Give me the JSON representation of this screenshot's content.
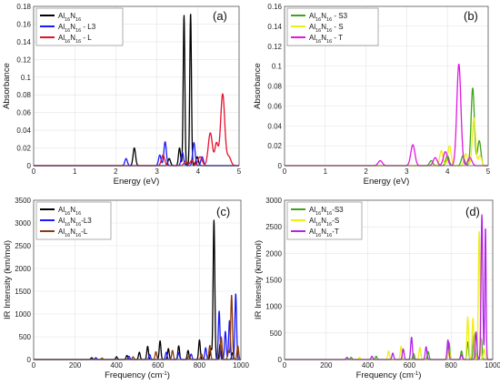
{
  "chart_data": [
    {
      "type": "line",
      "panel": "(a)",
      "xlabel": "Energy (eV)",
      "ylabel": "Absorbance",
      "xlim": [
        0,
        5
      ],
      "ylim": [
        0,
        0.18
      ],
      "xticks": [
        0,
        1,
        2,
        3,
        4,
        5
      ],
      "yticks": [
        0,
        0.02,
        0.04,
        0.06,
        0.08,
        0.1,
        0.12,
        0.14,
        0.16,
        0.18
      ],
      "ytick_labels": [
        "0",
        "0.02",
        "0.04",
        "0.06",
        "0.08",
        "0.1",
        "0.12",
        "0.14",
        "0.16",
        "0.18"
      ],
      "grid": true,
      "legend_position": "top-left",
      "series": [
        {
          "name": [
            "Al",
            "16",
            "N",
            "16",
            ""
          ],
          "color": "#000000",
          "peaks": [
            [
              2.45,
              0.02,
              0.03
            ],
            [
              3.3,
              0.008,
              0.03
            ],
            [
              3.55,
              0.02,
              0.025
            ],
            [
              3.66,
              0.17,
              0.02
            ],
            [
              3.82,
              0.172,
              0.02
            ],
            [
              3.98,
              0.01,
              0.03
            ]
          ]
        },
        {
          "name": [
            "Al",
            "16",
            "N",
            "16",
            " - L3"
          ],
          "color": "#1a1aff",
          "peaks": [
            [
              2.25,
              0.008,
              0.03
            ],
            [
              3.07,
              0.012,
              0.03
            ],
            [
              3.2,
              0.027,
              0.03
            ],
            [
              3.62,
              0.015,
              0.03
            ],
            [
              3.9,
              0.026,
              0.03
            ],
            [
              4.1,
              0.01,
              0.03
            ]
          ]
        },
        {
          "name": [
            "Al",
            "16",
            "N",
            "16",
            " - L"
          ],
          "color": "#e8102a",
          "peaks": [
            [
              3.15,
              0.012,
              0.04
            ],
            [
              3.7,
              0.005,
              0.04
            ],
            [
              3.85,
              0.006,
              0.04
            ],
            [
              4.05,
              0.01,
              0.05
            ],
            [
              4.3,
              0.037,
              0.05
            ],
            [
              4.45,
              0.025,
              0.04
            ],
            [
              4.6,
              0.081,
              0.05
            ],
            [
              4.75,
              0.01,
              0.05
            ]
          ]
        }
      ]
    },
    {
      "type": "line",
      "panel": "(b)",
      "xlabel": "Energy (eV)",
      "ylabel": "Absorbance",
      "xlim": [
        0,
        5
      ],
      "ylim": [
        0,
        0.16
      ],
      "xticks": [
        0,
        1,
        2,
        3,
        4,
        5
      ],
      "yticks": [
        0,
        0.02,
        0.04,
        0.06,
        0.08,
        0.1,
        0.12,
        0.14,
        0.16
      ],
      "ytick_labels": [
        "0",
        "0.02",
        "0.04",
        "0.06",
        "0.08",
        "0.1",
        "0.12",
        "0.14",
        "0.16"
      ],
      "grid": true,
      "legend_position": "top-left",
      "series": [
        {
          "name": [
            "Al",
            "16",
            "N",
            "16",
            " - S3"
          ],
          "color": "#3fa31c",
          "peaks": [
            [
              3.6,
              0.005,
              0.04
            ],
            [
              4.0,
              0.01,
              0.04
            ],
            [
              4.38,
              0.01,
              0.04
            ],
            [
              4.62,
              0.078,
              0.04
            ],
            [
              4.78,
              0.025,
              0.04
            ]
          ]
        },
        {
          "name": [
            "Al",
            "16",
            "N",
            "16",
            " - S"
          ],
          "color": "#eeee10",
          "peaks": [
            [
              3.85,
              0.015,
              0.04
            ],
            [
              4.05,
              0.02,
              0.04
            ],
            [
              4.45,
              0.012,
              0.04
            ],
            [
              4.65,
              0.048,
              0.04
            ],
            [
              4.8,
              0.01,
              0.04
            ]
          ]
        },
        {
          "name": [
            "Al",
            "16",
            "N",
            "16",
            " - T"
          ],
          "color": "#e019e0",
          "peaks": [
            [
              2.35,
              0.005,
              0.05
            ],
            [
              3.15,
              0.021,
              0.05
            ],
            [
              3.7,
              0.008,
              0.05
            ],
            [
              3.95,
              0.014,
              0.05
            ],
            [
              4.28,
              0.102,
              0.05
            ],
            [
              4.55,
              0.008,
              0.05
            ]
          ]
        }
      ]
    },
    {
      "type": "line",
      "panel": "(c)",
      "xlabel": [
        "Frequency (cm",
        "-1",
        ")"
      ],
      "ylabel": "IR Intensity (km/mol)",
      "xlim": [
        0,
        1000
      ],
      "ylim": [
        0,
        3500
      ],
      "xticks": [
        0,
        200,
        400,
        600,
        800,
        1000
      ],
      "yticks": [
        0,
        500,
        1000,
        1500,
        2000,
        2500,
        3000,
        3500
      ],
      "ytick_labels": [
        "0",
        "500",
        "1000",
        "1500",
        "2000",
        "2500",
        "3000",
        "3500"
      ],
      "grid": true,
      "legend_position": "top-left",
      "series": [
        {
          "name": [
            "Al",
            "16",
            "N",
            "16",
            ""
          ],
          "color": "#000000",
          "peaks": [
            [
              280,
              40,
              4
            ],
            [
              400,
              60,
              4
            ],
            [
              450,
              90,
              4
            ],
            [
              510,
              160,
              4
            ],
            [
              550,
              290,
              4
            ],
            [
              610,
              410,
              4
            ],
            [
              650,
              240,
              4
            ],
            [
              700,
              300,
              4
            ],
            [
              745,
              200,
              4
            ],
            [
              800,
              430,
              4
            ],
            [
              855,
              240,
              4
            ],
            [
              870,
              3060,
              4
            ],
            [
              900,
              340,
              4
            ],
            [
              960,
              150,
              4
            ]
          ]
        },
        {
          "name": [
            "Al",
            "16",
            "N",
            "16",
            "-L3"
          ],
          "color": "#1a1aff",
          "peaks": [
            [
              300,
              40,
              4
            ],
            [
              460,
              70,
              4
            ],
            [
              560,
              110,
              4
            ],
            [
              640,
              160,
              4
            ],
            [
              700,
              150,
              4
            ],
            [
              760,
              120,
              4
            ],
            [
              830,
              260,
              4
            ],
            [
              895,
              1070,
              4
            ],
            [
              925,
              620,
              4
            ],
            [
              945,
              860,
              4
            ],
            [
              975,
              1450,
              4
            ]
          ]
        },
        {
          "name": [
            "Al",
            "16",
            "N",
            "16",
            "-L"
          ],
          "color": "#8b3a0a",
          "peaks": [
            [
              330,
              30,
              4
            ],
            [
              480,
              60,
              4
            ],
            [
              590,
              170,
              4
            ],
            [
              670,
              200,
              4
            ],
            [
              750,
              90,
              4
            ],
            [
              810,
              120,
              4
            ],
            [
              850,
              310,
              4
            ],
            [
              905,
              500,
              4
            ],
            [
              940,
              200,
              4
            ],
            [
              955,
              1420,
              4
            ],
            [
              985,
              300,
              4
            ]
          ]
        }
      ]
    },
    {
      "type": "line",
      "panel": "(d)",
      "xlabel": [
        "Frequency (cm",
        "-1",
        ")"
      ],
      "ylabel": "IR Intensity (km/mol)",
      "xlim": [
        0,
        1000
      ],
      "ylim": [
        0,
        3000
      ],
      "xticks": [
        0,
        200,
        400,
        600,
        800,
        1000
      ],
      "yticks": [
        0,
        500,
        1000,
        1500,
        2000,
        2500,
        3000
      ],
      "ytick_labels": [
        "0",
        "500",
        "1000",
        "1500",
        "2000",
        "2500",
        "3000"
      ],
      "grid": true,
      "legend_position": "top-left",
      "series": [
        {
          "name": [
            "Al",
            "16",
            "N",
            "16",
            "-S3"
          ],
          "color": "#3fa31c",
          "peaks": [
            [
              320,
              40,
              4
            ],
            [
              440,
              60,
              4
            ],
            [
              620,
              110,
              4
            ],
            [
              690,
              150,
              4
            ],
            [
              790,
              320,
              4
            ],
            [
              850,
              160,
              4
            ],
            [
              880,
              330,
              4
            ],
            [
              910,
              500,
              4
            ],
            [
              945,
              400,
              4
            ]
          ]
        },
        {
          "name": [
            "Al",
            "16",
            "N",
            "16",
            "-S"
          ],
          "color": "#eeee10",
          "peaks": [
            [
              360,
              40,
              4
            ],
            [
              500,
              160,
              4
            ],
            [
              560,
              250,
              4
            ],
            [
              650,
              230,
              4
            ],
            [
              790,
              200,
              4
            ],
            [
              880,
              800,
              4
            ],
            [
              905,
              780,
              4
            ],
            [
              935,
              2430,
              4
            ],
            [
              960,
              200,
              4
            ]
          ]
        },
        {
          "name": [
            "Al",
            "16",
            "N",
            "16",
            "-T"
          ],
          "color": "#b521e8",
          "peaks": [
            [
              300,
              40,
              4
            ],
            [
              420,
              60,
              4
            ],
            [
              520,
              120,
              4
            ],
            [
              570,
              200,
              4
            ],
            [
              610,
              420,
              4
            ],
            [
              680,
              240,
              4
            ],
            [
              785,
              370,
              4
            ],
            [
              850,
              90,
              4
            ],
            [
              920,
              520,
              4
            ],
            [
              948,
              2730,
              4
            ],
            [
              965,
              2500,
              3
            ]
          ]
        }
      ]
    }
  ]
}
